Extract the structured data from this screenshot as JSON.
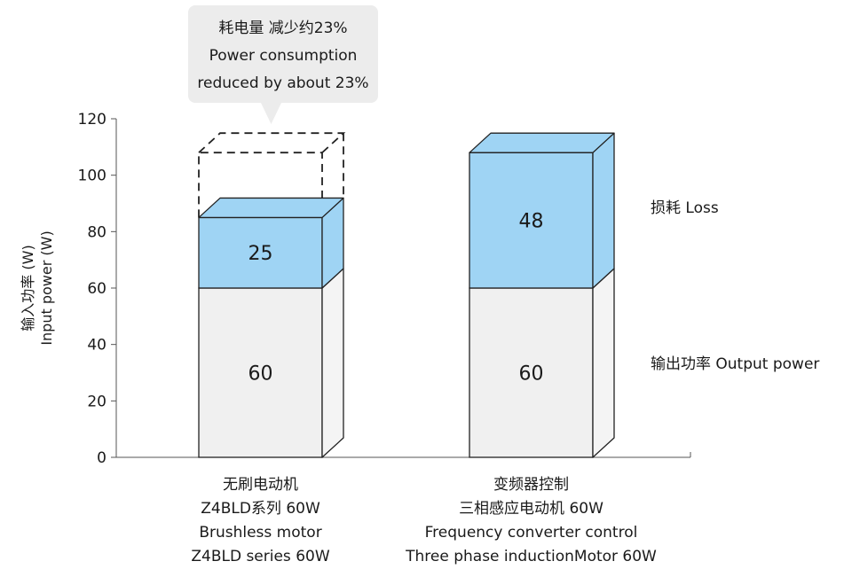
{
  "chart_data": {
    "type": "bar",
    "stacked": true,
    "style": "3d",
    "ylabel_cn": "输入功率 (W)",
    "ylabel_en": "Input power (W)",
    "ylim": [
      0,
      120
    ],
    "yticks": [
      "0",
      "20",
      "40",
      "60",
      "80",
      "100",
      "120"
    ],
    "categories": [
      [
        "无刷电动机",
        "Z4BLD系列 60W",
        "Brushless motor",
        "Z4BLD series 60W"
      ],
      [
        "变频器控制",
        "三相感应电动机 60W",
        "Frequency converter control",
        "Three phase inductionMotor 60W"
      ]
    ],
    "series": [
      {
        "name": "输出功率 Output power",
        "values": [
          60,
          60
        ],
        "color": "#f0f0f0"
      },
      {
        "name": "损耗 Loss",
        "values": [
          25,
          48
        ],
        "color": "#9fd4f4"
      }
    ],
    "data_labels": [
      "60",
      "25",
      "60",
      "48"
    ],
    "reference_value": 108,
    "annotation": [
      "耗电量 减少约23%",
      "Power consumption",
      "reduced by about 23%"
    ]
  }
}
